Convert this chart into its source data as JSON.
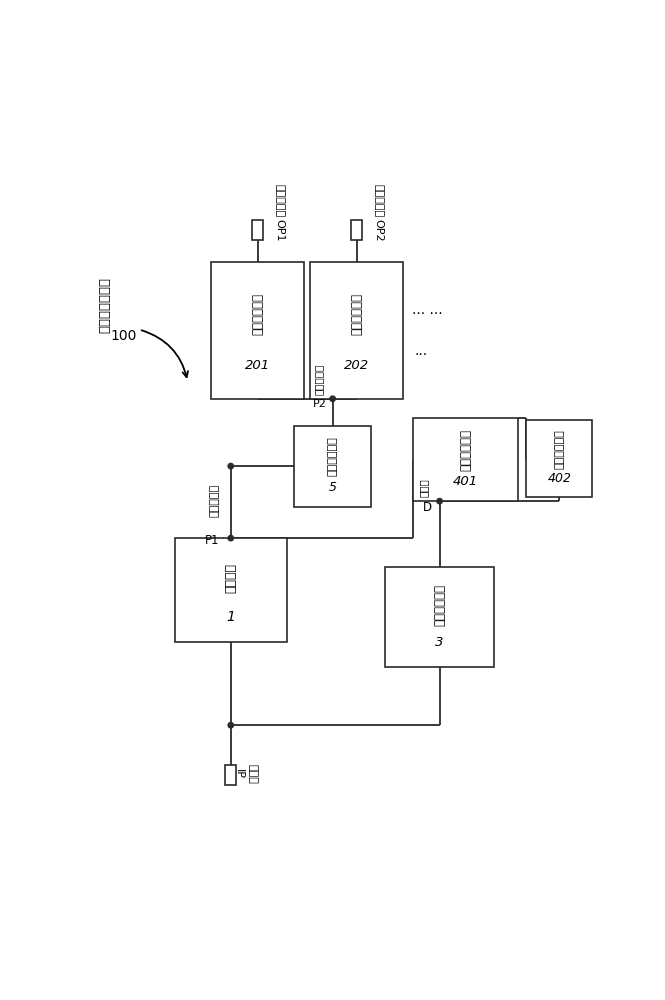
{
  "bg_color": "#ffffff",
  "box4_ch": "第一输出电路",
  "box4_num": "201",
  "box5_ch": "第二输出电路",
  "box5_num": "202",
  "box2_ch": "时序控制电路",
  "box2_num": "5",
  "box6_ch": "第一下拉电路",
  "box6_num": "401",
  "box7_ch": "第二下拉电路",
  "box7_num": "402",
  "box1_ch": "输入电路",
  "box1_num": "1",
  "box3_ch": "下拉控制电路",
  "box3_num": "3",
  "label_shift": "移位寄存器单元",
  "label_100": "100",
  "label_OP1_ch": "第一输出端",
  "label_OP1_sym": "OP1",
  "label_OP2_ch": "第二输出端",
  "label_OP2_sym": "OP2",
  "label_IP_ch": "输入端",
  "label_IP_sym": "IP",
  "label_P1_ch": "第一上拉点",
  "label_P1_sym": "P1",
  "label_P2_ch": "第二上拉点",
  "label_P2_sym": "P2",
  "label_D_ch": "下拉点",
  "label_D_sym": "D",
  "ellipsis1": "... ...",
  "ellipsis2": "..."
}
